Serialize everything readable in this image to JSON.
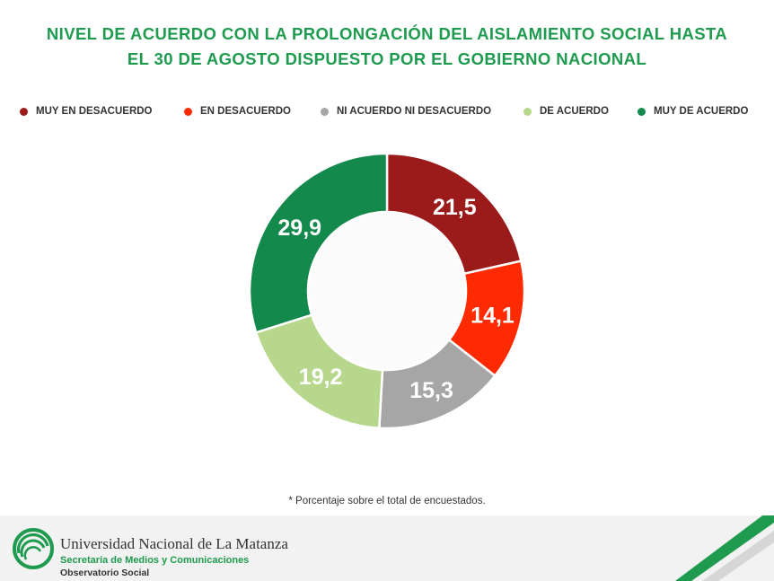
{
  "chart_data": {
    "type": "pie",
    "title_lines": [
      "NIVEL DE ACUERDO CON LA PROLONGACIÓN DEL AISLAMIENTO SOCIAL HASTA",
      "EL 30 DE AGOSTO DISPUESTO POR EL GOBIERNO NACIONAL"
    ],
    "categories": [
      "MUY EN DESACUERDO",
      "EN DESACUERDO",
      "NI ACUERDO NI DESACUERDO",
      "DE ACUERDO",
      "MUY DE ACUERDO"
    ],
    "values": [
      21.5,
      14.1,
      15.3,
      19.2,
      29.9
    ],
    "data_labels": [
      "21,5",
      "14,1",
      "15,3",
      "19,2",
      "29,9"
    ],
    "colors": [
      "#9b1b1b",
      "#ff2a00",
      "#a6a6a6",
      "#b6d78c",
      "#13894b"
    ],
    "legend_position": "top",
    "donut": true
  },
  "footnote": "* Porcentaje sobre el total de encuestados.",
  "footer": {
    "university": "Universidad Nacional de La Matanza",
    "secretaria": "Secretaría de Medios y Comunicaciones",
    "observatorio": "Observatorio Social",
    "logo_icon": "unlam-logo-icon",
    "brand_color": "#1e9b4e"
  }
}
